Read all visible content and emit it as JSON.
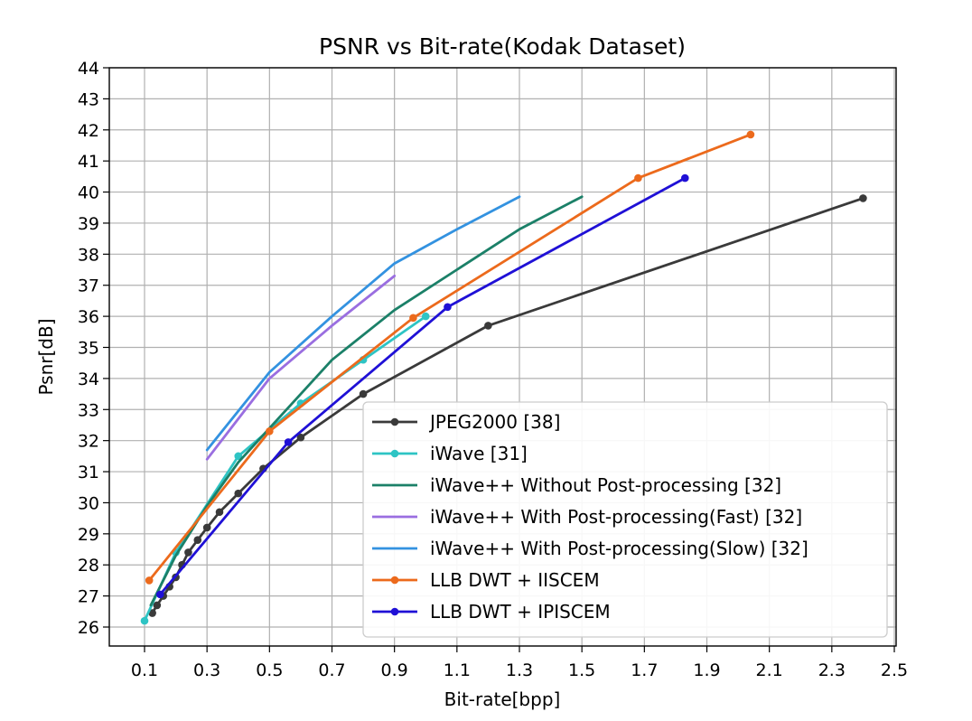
{
  "chart_data": {
    "type": "line",
    "title": "PSNR vs Bit-rate(Kodak Dataset)",
    "xlabel": "Bit-rate[bpp]",
    "ylabel": "Psnr[dB]",
    "xlim": [
      0,
      2.53
    ],
    "ylim": [
      25.5,
      44
    ],
    "xticks": [
      0.1,
      0.3,
      0.5,
      0.7,
      0.9,
      1.1,
      1.3,
      1.5,
      1.7,
      1.9,
      2.1,
      2.3,
      2.5
    ],
    "xtick_labels": [
      "0.1",
      "0.3",
      "0.5",
      "0.7",
      "0.9",
      "1.1",
      "1.3",
      "1.5",
      "1.7",
      "1.9",
      "2.1",
      "2.3",
      "2.5"
    ],
    "yticks": [
      26,
      27,
      28,
      29,
      30,
      31,
      32,
      33,
      34,
      35,
      36,
      37,
      38,
      39,
      40,
      41,
      42,
      43,
      44
    ],
    "ytick_labels": [
      "26",
      "27",
      "28",
      "29",
      "30",
      "31",
      "32",
      "33",
      "34",
      "35",
      "36",
      "37",
      "38",
      "39",
      "40",
      "41",
      "42",
      "43",
      "44"
    ],
    "grid": true,
    "legend_position": "lower-right",
    "series": [
      {
        "name": "JPEG2000 [38]",
        "color": "#3a3a3a",
        "markers": true,
        "x": [
          0.125,
          0.14,
          0.16,
          0.18,
          0.2,
          0.22,
          0.24,
          0.27,
          0.3,
          0.34,
          0.4,
          0.48,
          0.6,
          0.8,
          1.2,
          2.4
        ],
        "y": [
          26.45,
          26.7,
          27.0,
          27.3,
          27.6,
          28.0,
          28.4,
          28.8,
          29.2,
          29.7,
          30.3,
          31.1,
          32.1,
          33.5,
          35.7,
          39.8
        ]
      },
      {
        "name": "iWave [31]",
        "color": "#2ec4c4",
        "markers": true,
        "x": [
          0.1,
          0.2,
          0.4,
          0.6,
          0.8,
          1.0
        ],
        "y": [
          26.2,
          28.4,
          31.5,
          33.2,
          34.6,
          36.0
        ]
      },
      {
        "name": "iWave++ Without Post-processing [32]",
        "color": "#1b8068",
        "markers": false,
        "x": [
          0.12,
          0.2,
          0.3,
          0.4,
          0.5,
          0.7,
          0.9,
          1.1,
          1.3,
          1.5
        ],
        "y": [
          26.7,
          28.3,
          29.9,
          31.3,
          32.4,
          34.6,
          36.2,
          37.5,
          38.8,
          39.85
        ]
      },
      {
        "name": "iWave++ With Post-processing(Fast) [32]",
        "color": "#9a6ee0",
        "markers": false,
        "x": [
          0.3,
          0.5,
          0.7,
          0.9
        ],
        "y": [
          31.4,
          34.0,
          35.7,
          37.3
        ]
      },
      {
        "name": "iWave++ With Post-processing(Slow) [32]",
        "color": "#3392e0",
        "markers": false,
        "x": [
          0.3,
          0.5,
          0.7,
          0.9,
          1.1,
          1.3
        ],
        "y": [
          31.7,
          34.2,
          36.0,
          37.7,
          38.8,
          39.85
        ]
      },
      {
        "name": "LLB DWT + IISCEM",
        "color": "#ec6a1c",
        "markers": true,
        "x": [
          0.115,
          0.5,
          0.96,
          1.68,
          2.04
        ],
        "y": [
          27.5,
          32.3,
          35.95,
          40.45,
          41.85
        ]
      },
      {
        "name": "LLB DWT + IPISCEM",
        "color": "#1f10d6",
        "markers": true,
        "x": [
          0.15,
          0.56,
          1.07,
          1.83
        ],
        "y": [
          27.05,
          31.95,
          36.3,
          40.45
        ]
      }
    ]
  }
}
